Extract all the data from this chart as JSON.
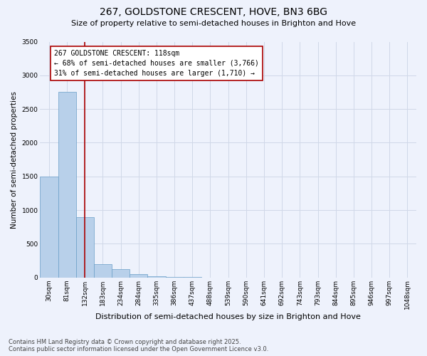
{
  "title": "267, GOLDSTONE CRESCENT, HOVE, BN3 6BG",
  "subtitle": "Size of property relative to semi-detached houses in Brighton and Hove",
  "xlabel": "Distribution of semi-detached houses by size in Brighton and Hove",
  "ylabel": "Number of semi-detached properties",
  "categories": [
    "30sqm",
    "81sqm",
    "132sqm",
    "183sqm",
    "234sqm",
    "284sqm",
    "335sqm",
    "386sqm",
    "437sqm",
    "488sqm",
    "539sqm",
    "590sqm",
    "641sqm",
    "692sqm",
    "743sqm",
    "793sqm",
    "844sqm",
    "895sqm",
    "946sqm",
    "997sqm",
    "1048sqm"
  ],
  "values": [
    1500,
    2750,
    900,
    200,
    120,
    50,
    20,
    8,
    3,
    1,
    1,
    0,
    0,
    0,
    0,
    0,
    0,
    0,
    0,
    0,
    0
  ],
  "bar_color": "#b8d0ea",
  "bar_edge_color": "#6a9fc8",
  "vline_color": "#aa0000",
  "annotation_text": "267 GOLDSTONE CRESCENT: 118sqm\n← 68% of semi-detached houses are smaller (3,766)\n31% of semi-detached houses are larger (1,710) →",
  "annotation_box_color": "#ffffff",
  "annotation_box_edge_color": "#aa0000",
  "ylim": [
    0,
    3500
  ],
  "yticks": [
    0,
    500,
    1000,
    1500,
    2000,
    2500,
    3000,
    3500
  ],
  "grid_color": "#d0d8e8",
  "bg_color": "#eef2fc",
  "footer_line1": "Contains HM Land Registry data © Crown copyright and database right 2025.",
  "footer_line2": "Contains public sector information licensed under the Open Government Licence v3.0.",
  "title_fontsize": 10,
  "subtitle_fontsize": 8,
  "xlabel_fontsize": 8,
  "ylabel_fontsize": 7.5,
  "tick_fontsize": 6.5,
  "annotation_fontsize": 7,
  "footer_fontsize": 6
}
